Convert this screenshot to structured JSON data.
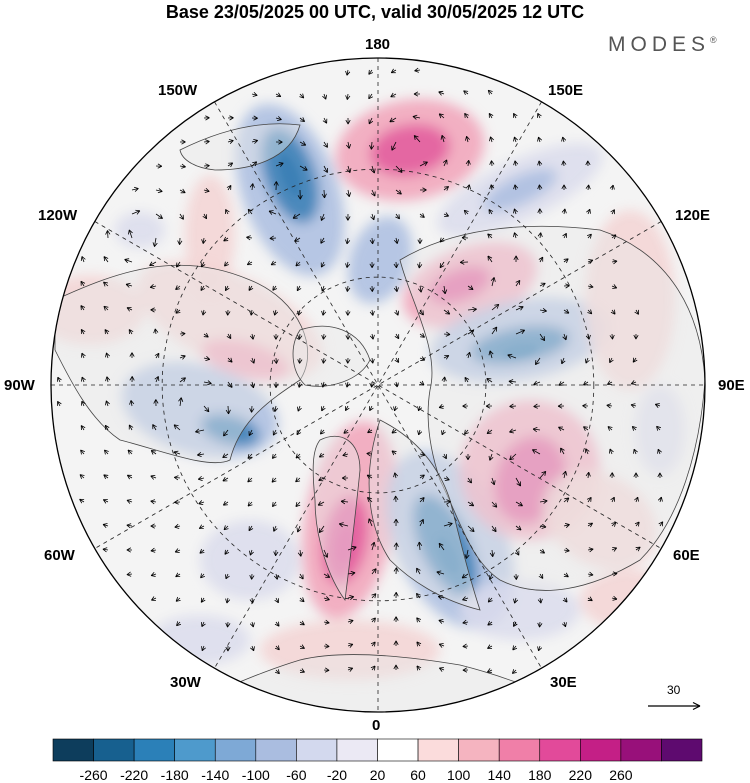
{
  "title": "Base 23/05/2025 00 UTC, valid 30/05/2025 12 UTC",
  "brand": {
    "name": "MODES",
    "mark": "®"
  },
  "longitude_labels": {
    "top": "180",
    "top_left": "150W",
    "top_right": "150E",
    "upper_left": "120W",
    "upper_right": "120E",
    "left": "90W",
    "right": "90E",
    "lower_left": "60W",
    "lower_right": "60E",
    "bottom_left": "30W",
    "bottom_right": "30E",
    "bottom": "0"
  },
  "reference_vector": {
    "label": "30"
  },
  "colorbar": {
    "colors": [
      "#0d3d5c",
      "#17608f",
      "#2b80b8",
      "#4e9acc",
      "#7ea9d6",
      "#aabde0",
      "#d3d9ee",
      "#ebe9f4",
      "#ffffff",
      "#fbdcdc",
      "#f5b4c0",
      "#f07fa8",
      "#e24a9a",
      "#c41f86",
      "#98107a",
      "#5e0a6f"
    ],
    "tick_labels": [
      "-260",
      "-220",
      "-180",
      "-140",
      "-100",
      "-60",
      "-20",
      "20",
      "60",
      "100",
      "140",
      "180",
      "220",
      "260"
    ]
  },
  "map": {
    "projection": "north-polar-stereographic",
    "field": "geopotential height anomaly with wind vectors",
    "anomaly_colors": {
      "strong_negative": "#3a7fb5",
      "negative": "#aabde0",
      "weak_negative": "#dadcec",
      "weak_positive": "#f3d3d3",
      "positive": "#f1a2b8",
      "strong_positive": "#e25a9e"
    },
    "land_color": "#e9e9e9",
    "ocean_color": "#f4f4f4",
    "coastline_color": "#444444"
  }
}
